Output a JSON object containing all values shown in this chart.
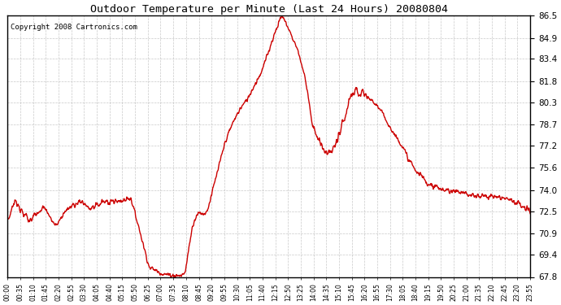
{
  "title": "Outdoor Temperature per Minute (Last 24 Hours) 20080804",
  "copyright_text": "Copyright 2008 Cartronics.com",
  "line_color": "#cc0000",
  "background_color": "#ffffff",
  "grid_color": "#bbbbbb",
  "y_ticks": [
    67.8,
    69.4,
    70.9,
    72.5,
    74.0,
    75.6,
    77.2,
    78.7,
    80.3,
    81.8,
    83.4,
    84.9,
    86.5
  ],
  "y_min": 67.8,
  "y_max": 86.5,
  "x_tick_labels": [
    "00:00",
    "00:35",
    "01:10",
    "01:45",
    "02:20",
    "02:55",
    "03:30",
    "04:05",
    "04:40",
    "05:15",
    "05:50",
    "06:25",
    "07:00",
    "07:35",
    "08:10",
    "08:45",
    "09:20",
    "09:55",
    "10:30",
    "11:05",
    "11:40",
    "12:15",
    "12:50",
    "13:25",
    "14:00",
    "14:35",
    "15:10",
    "15:45",
    "16:20",
    "16:55",
    "17:30",
    "18:05",
    "18:40",
    "19:15",
    "19:50",
    "20:25",
    "21:00",
    "21:35",
    "22:10",
    "22:45",
    "23:20",
    "23:55"
  ],
  "line_width": 1.0,
  "fig_width": 6.9,
  "fig_height": 3.75,
  "dpi": 100,
  "keypoints_x": [
    0,
    20,
    60,
    100,
    130,
    170,
    200,
    230,
    260,
    290,
    320,
    330,
    340,
    360,
    390,
    430,
    460,
    480,
    490,
    500,
    510,
    520,
    530,
    540,
    550,
    560,
    580,
    600,
    620,
    640,
    660,
    680,
    700,
    720,
    730,
    740,
    750,
    755,
    760,
    770,
    780,
    800,
    820,
    830,
    840,
    860,
    880,
    900,
    920,
    930,
    940,
    950,
    960,
    970,
    980,
    1000,
    1020,
    1040,
    1060,
    1080,
    1100,
    1120,
    1140,
    1160,
    1200,
    1250,
    1300,
    1350,
    1380,
    1440
  ],
  "keypoints_y": [
    71.8,
    73.3,
    71.8,
    72.8,
    71.5,
    72.8,
    73.2,
    72.6,
    73.1,
    73.2,
    73.3,
    73.4,
    73.4,
    71.5,
    68.5,
    68.0,
    67.9,
    67.9,
    68.2,
    70.0,
    71.5,
    72.2,
    72.4,
    72.3,
    72.5,
    73.5,
    75.5,
    77.5,
    78.8,
    79.8,
    80.5,
    81.5,
    82.5,
    84.0,
    84.8,
    85.5,
    86.2,
    86.5,
    86.3,
    85.8,
    85.2,
    84.0,
    82.0,
    80.5,
    78.5,
    77.5,
    76.5,
    77.0,
    78.5,
    79.2,
    80.3,
    80.8,
    81.2,
    81.0,
    80.8,
    80.5,
    80.0,
    79.2,
    78.2,
    77.5,
    76.5,
    75.5,
    75.0,
    74.5,
    74.0,
    73.8,
    73.6,
    73.5,
    73.4,
    72.5
  ]
}
